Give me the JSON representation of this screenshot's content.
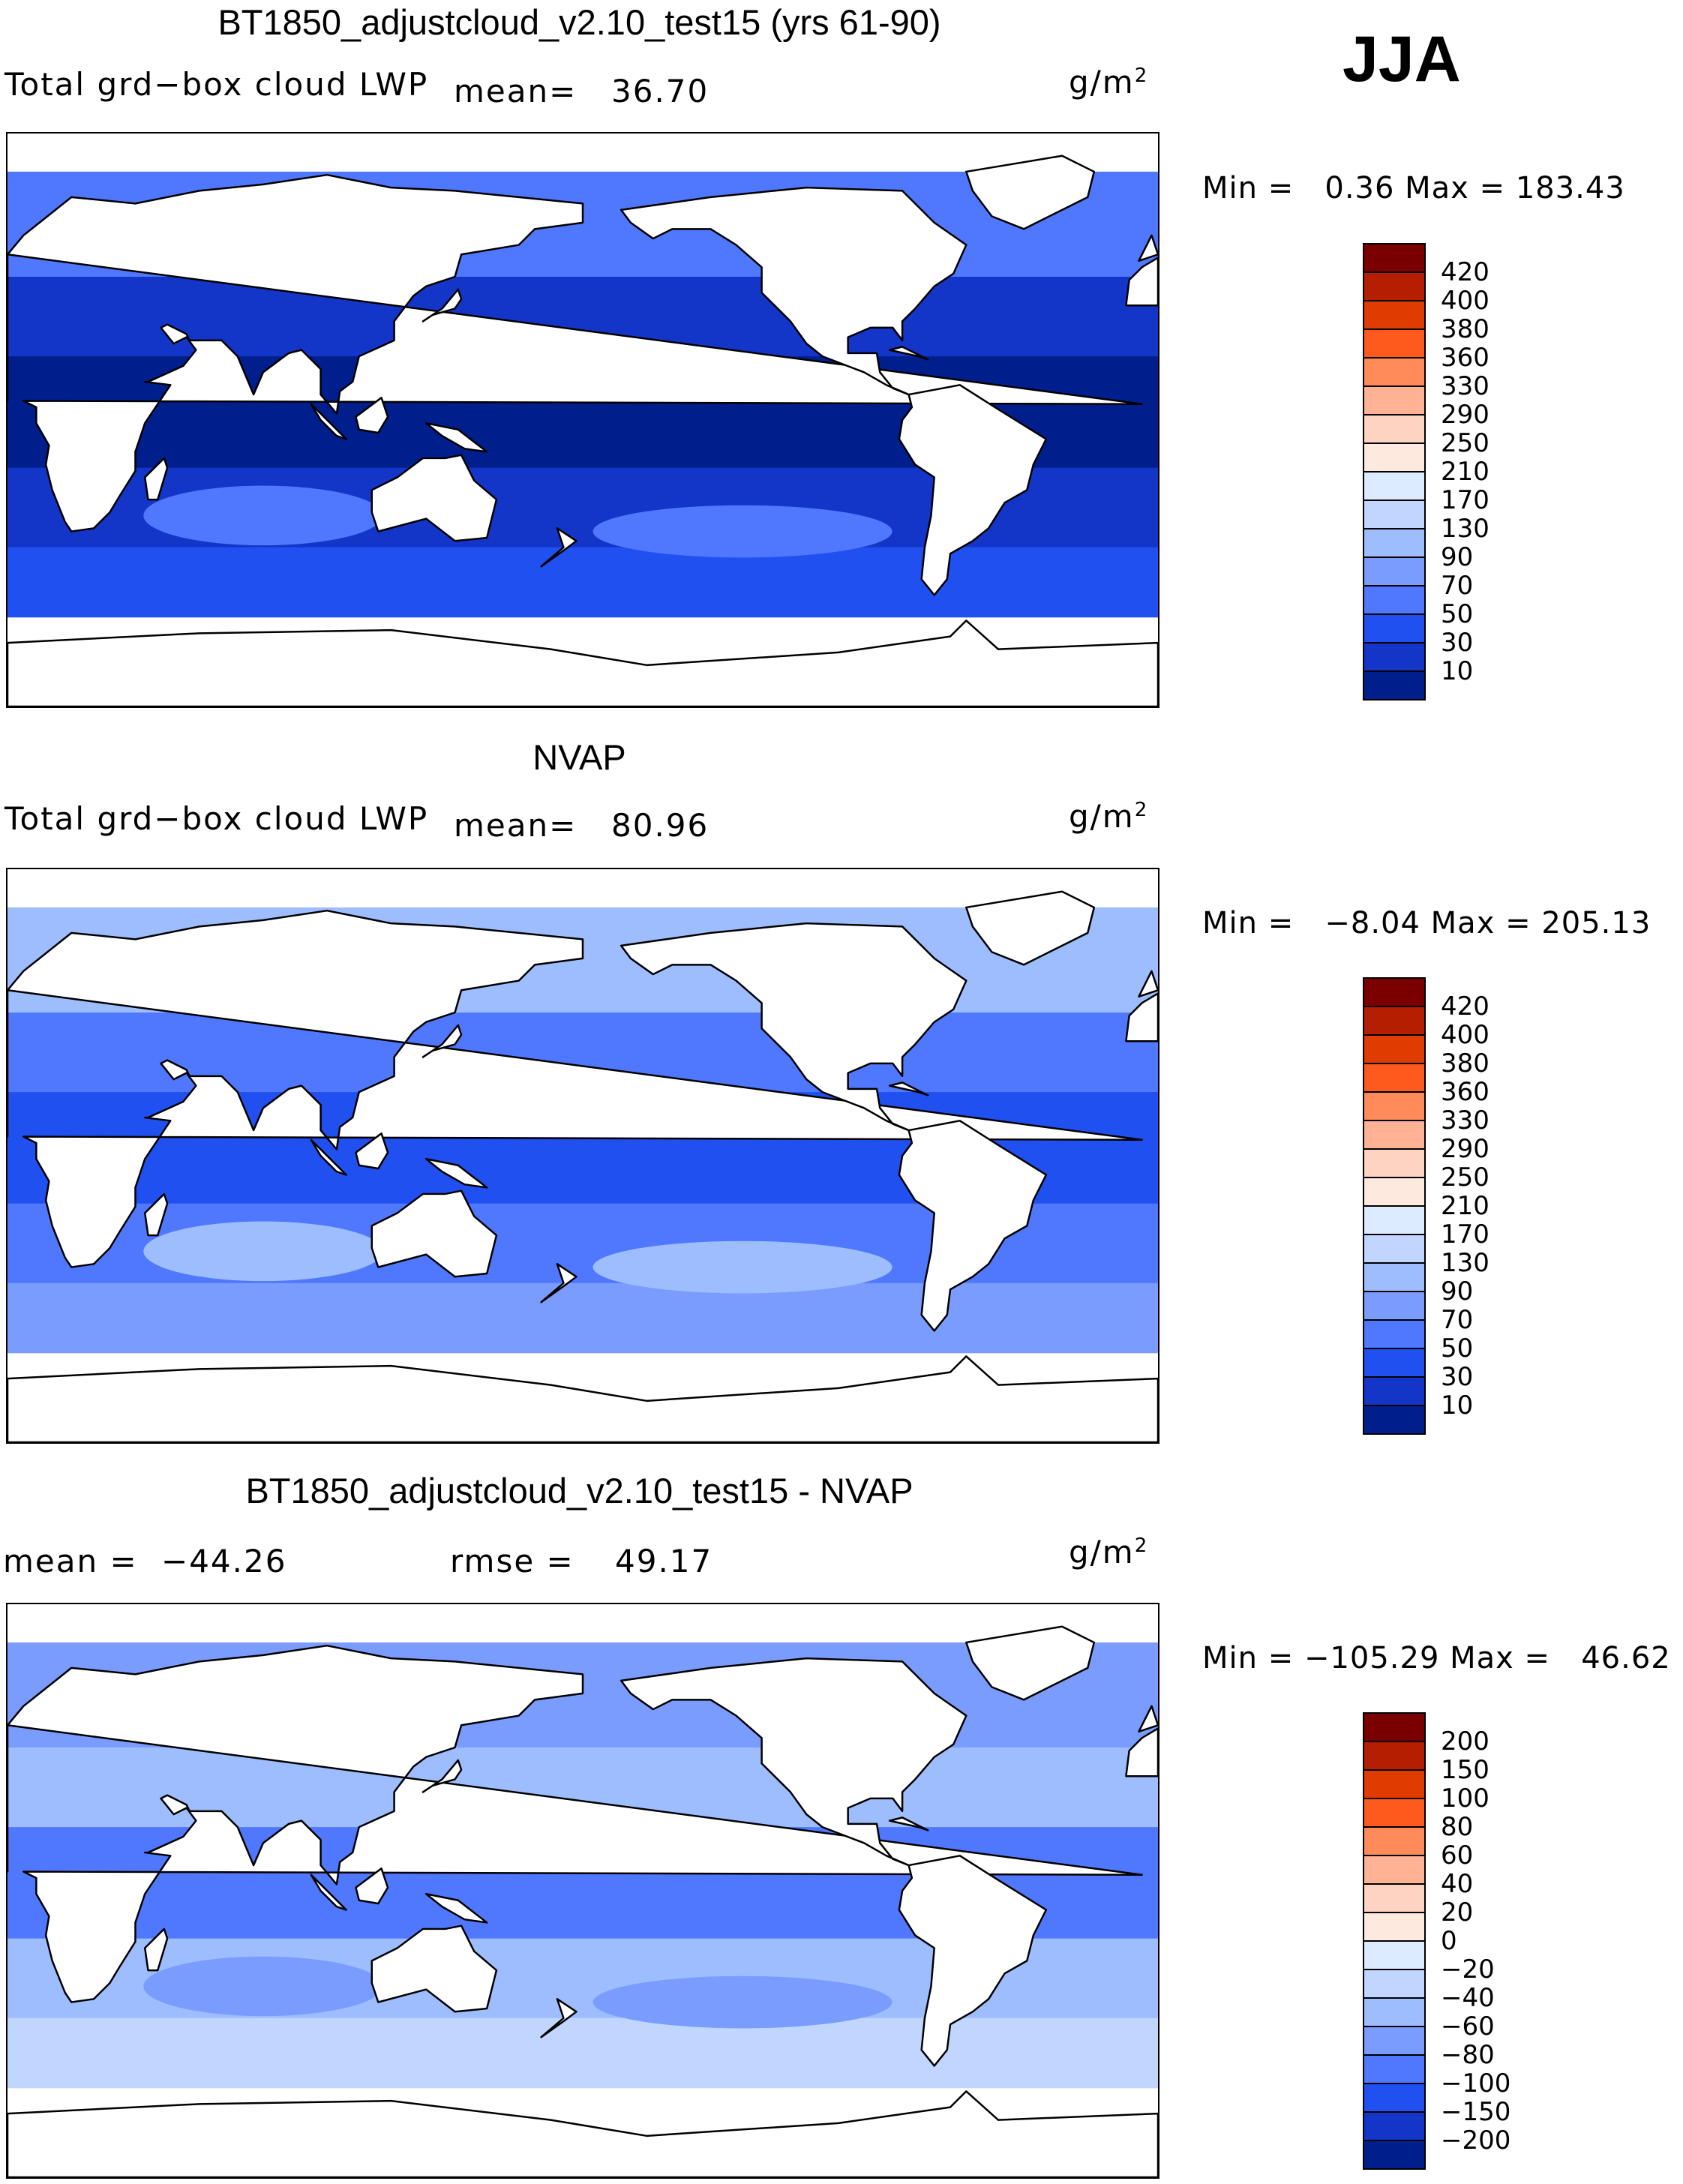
{
  "season": "JJA",
  "colors": {
    "land": "#ffffff",
    "coast": "#000000",
    "bar_top_scale": [
      "#7a0000",
      "#b51e00",
      "#e03b00",
      "#ff5a1e",
      "#ff8a5a",
      "#ffb394",
      "#ffd3c2",
      "#fde9dd",
      "#dcebff",
      "#c0d6ff",
      "#9ebdff",
      "#7a9cff",
      "#4f78ff",
      "#2050f0",
      "#1336c8",
      "#001f8c"
    ],
    "bar_diff_scale": [
      "#7a0000",
      "#b51e00",
      "#e03b00",
      "#ff5a1e",
      "#ff8a5a",
      "#ffb394",
      "#ffd3c2",
      "#fde9dd",
      "#dcebff",
      "#c0d6ff",
      "#9ebdff",
      "#7a9cff",
      "#4f78ff",
      "#2050f0",
      "#1336c8",
      "#001f8c"
    ]
  },
  "panels": [
    {
      "id": "model",
      "title": "BT1850_adjustcloud_v2.10_test15 (yrs 61-90)",
      "variable_label": "Total grd−box cloud LWP",
      "stat_label": "mean=",
      "stat_value": "36.70",
      "unit_base": "g/m",
      "unit_exp": "2",
      "min_label": "Min =",
      "min_value": "0.36",
      "max_label": "Max =",
      "max_value": "183.43",
      "colorbar_levels": [
        "420",
        "400",
        "380",
        "360",
        "330",
        "290",
        "250",
        "210",
        "170",
        "130",
        "90",
        "70",
        "50",
        "30",
        "10"
      ],
      "field": {
        "dominant_color": "#1336c8",
        "north_pacific": "#4f78ff",
        "tropics": "#001f8c",
        "south_ocean": "#2050f0"
      }
    },
    {
      "id": "obs",
      "title": "NVAP",
      "variable_label": "Total grd−box cloud LWP",
      "stat_label": "mean=",
      "stat_value": "80.96",
      "unit_base": "g/m",
      "unit_exp": "2",
      "min_label": "Min =",
      "min_value": "−8.04",
      "max_label": "Max =",
      "max_value": "205.13",
      "colorbar_levels": [
        "420",
        "400",
        "380",
        "360",
        "330",
        "290",
        "250",
        "210",
        "170",
        "130",
        "90",
        "70",
        "50",
        "30",
        "10"
      ],
      "field": {
        "dominant_color": "#4f78ff",
        "north_pacific": "#9ebdff",
        "tropics": "#2050f0",
        "south_ocean": "#7a9cff"
      }
    },
    {
      "id": "diff",
      "title": "BT1850_adjustcloud_v2.10_test15 - NVAP",
      "mean_label": "mean =",
      "mean_value": "−44.26",
      "rmse_label": "rmse =",
      "rmse_value": "49.17",
      "unit_base": "g/m",
      "unit_exp": "2",
      "min_label": "Min =",
      "min_value": "−105.29",
      "max_label": "Max =",
      "max_value": "46.62",
      "colorbar_levels": [
        "200",
        "150",
        "100",
        "80",
        "60",
        "40",
        "20",
        "0",
        "−20",
        "−40",
        "−60",
        "−80",
        "−100",
        "−150",
        "−200"
      ],
      "field": {
        "dominant_color": "#9ebdff",
        "north_pacific": "#7a9cff",
        "tropics": "#4f78ff",
        "south_ocean": "#c0d6ff"
      }
    }
  ]
}
